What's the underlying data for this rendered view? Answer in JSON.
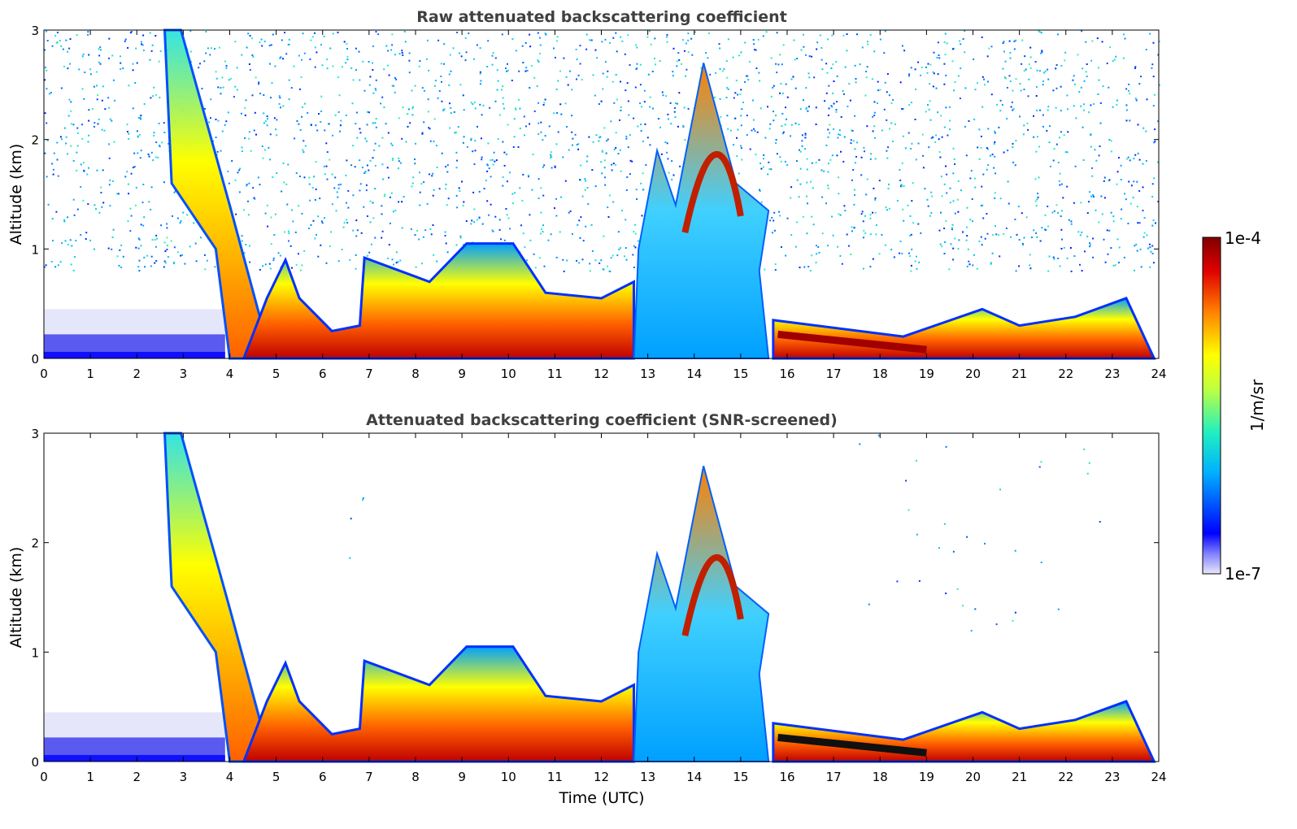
{
  "chart_data": [
    {
      "type": "heatmap",
      "title": "Raw attenuated backscattering coefficient",
      "xlabel": "",
      "ylabel": "Altitude (km)",
      "xlim": [
        0,
        24
      ],
      "ylim": [
        0,
        3
      ],
      "xticks": [
        "0",
        "1",
        "2",
        "3",
        "4",
        "5",
        "6",
        "7",
        "8",
        "9",
        "10",
        "11",
        "12",
        "13",
        "14",
        "15",
        "16",
        "17",
        "18",
        "19",
        "20",
        "21",
        "22",
        "23",
        "24"
      ],
      "yticks": [
        "0",
        "1",
        "2",
        "3"
      ],
      "features": [
        {
          "t0": 2.6,
          "t1": 4.6,
          "top": 3.0,
          "level": 0.72
        },
        {
          "t0": 4.3,
          "t1": 6.8,
          "top": 0.8,
          "level": 0.8
        },
        {
          "t0": 6.8,
          "t1": 12.7,
          "top": 0.95,
          "level": 0.82
        },
        {
          "t0": 12.7,
          "t1": 15.5,
          "top": 2.7,
          "level": 0.6
        },
        {
          "t0": 15.7,
          "t1": 18.5,
          "top": 0.35,
          "level": 0.95
        },
        {
          "t0": 18.5,
          "t1": 23.9,
          "top": 0.55,
          "level": 0.85
        }
      ]
    },
    {
      "type": "heatmap",
      "title": "Attenuated backscattering coefficient (SNR-screened)",
      "xlabel": "Time (UTC)",
      "ylabel": "Altitude (km)",
      "xlim": [
        0,
        24
      ],
      "ylim": [
        0,
        3
      ],
      "xticks": [
        "0",
        "1",
        "2",
        "3",
        "4",
        "5",
        "6",
        "7",
        "8",
        "9",
        "10",
        "11",
        "12",
        "13",
        "14",
        "15",
        "16",
        "17",
        "18",
        "19",
        "20",
        "21",
        "22",
        "23",
        "24"
      ],
      "yticks": [
        "0",
        "1",
        "2",
        "3"
      ],
      "features": [
        {
          "t0": 2.6,
          "t1": 4.6,
          "top": 3.0,
          "level": 0.72
        },
        {
          "t0": 4.3,
          "t1": 6.8,
          "top": 0.8,
          "level": 0.8
        },
        {
          "t0": 6.8,
          "t1": 12.7,
          "top": 0.95,
          "level": 0.82
        },
        {
          "t0": 12.7,
          "t1": 15.5,
          "top": 2.7,
          "level": 0.6
        },
        {
          "t0": 15.7,
          "t1": 18.5,
          "top": 0.35,
          "level": 0.95
        },
        {
          "t0": 18.5,
          "t1": 23.9,
          "top": 0.55,
          "level": 0.85
        }
      ]
    }
  ],
  "colorbar": {
    "label": "1/m/sr",
    "max_label": "1e-4",
    "min_label": "1e-7",
    "colormap": "jet",
    "colors": [
      "#e8e8fa",
      "#0000ff",
      "#00b0ff",
      "#20f0c0",
      "#ffff00",
      "#ff8000",
      "#e00000",
      "#800000"
    ]
  }
}
